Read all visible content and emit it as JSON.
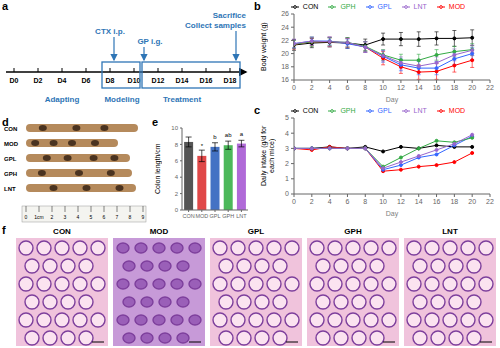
{
  "panel_labels": [
    "a",
    "b",
    "c",
    "d",
    "e",
    "f"
  ],
  "timeline": {
    "days": [
      "D0",
      "D2",
      "D4",
      "D6",
      "D8",
      "D10",
      "D12",
      "D14",
      "D16",
      "D18"
    ],
    "phases": [
      "Adapting",
      "Modeling",
      "Treatment"
    ],
    "events": [
      "CTX i.p.",
      "GP i.g.",
      "Sacrifice",
      "Collect samples"
    ]
  },
  "chart_data": [
    {
      "type": "line",
      "y_label": "Body weight (g)",
      "x_label": "Day",
      "x": [
        0,
        2,
        4,
        6,
        8,
        10,
        12,
        14,
        16,
        18,
        20
      ],
      "xlim": [
        0,
        22
      ],
      "xticks": [
        0,
        2,
        4,
        6,
        8,
        10,
        12,
        14,
        16,
        18,
        20,
        22
      ],
      "ylim": [
        16,
        26
      ],
      "yticks": [
        16,
        18,
        20,
        22,
        24,
        26
      ],
      "legend": "top",
      "marker": "circle",
      "series": [
        {
          "name": "CON",
          "color": "#000000",
          "values": [
            21.3,
            21.6,
            21.7,
            21.6,
            21.3,
            22.2,
            22.2,
            22.2,
            22.3,
            22.3,
            22.4
          ],
          "errors": [
            0.8,
            0.7,
            0.7,
            0.8,
            0.9,
            0.9,
            1.0,
            1.1,
            1.0,
            1.2,
            1.2
          ]
        },
        {
          "name": "MOD",
          "color": "#ff0000",
          "values": [
            21.4,
            21.8,
            21.8,
            21.6,
            21.0,
            19.3,
            18.0,
            17.2,
            17.3,
            18.2,
            19.0
          ],
          "errors": [
            0.7,
            0.6,
            0.7,
            0.7,
            0.8,
            1.0,
            1.0,
            1.1,
            1.2,
            1.0,
            1.1
          ]
        },
        {
          "name": "GPL",
          "color": "#3366ff",
          "values": [
            21.5,
            21.9,
            21.9,
            21.5,
            21.0,
            19.6,
            18.3,
            17.8,
            17.8,
            19.2,
            20.0
          ],
          "errors": [
            0.6,
            0.6,
            0.6,
            0.7,
            0.8,
            0.9,
            0.9,
            1.0,
            1.0,
            0.9,
            0.9
          ]
        },
        {
          "name": "GPH",
          "color": "#33aa44",
          "values": [
            21.4,
            21.8,
            21.8,
            21.7,
            21.1,
            19.8,
            19.0,
            19.0,
            19.8,
            20.3,
            20.6
          ],
          "errors": [
            0.6,
            0.7,
            0.6,
            0.7,
            0.7,
            0.8,
            0.9,
            0.9,
            0.8,
            0.8,
            0.9
          ]
        },
        {
          "name": "LNT",
          "color": "#9966cc",
          "values": [
            21.5,
            21.9,
            21.8,
            21.7,
            21.0,
            19.7,
            18.6,
            18.1,
            18.6,
            19.8,
            20.5
          ],
          "errors": [
            0.7,
            0.6,
            0.7,
            0.6,
            0.8,
            0.8,
            0.9,
            1.0,
            0.9,
            0.9,
            0.8
          ]
        }
      ]
    },
    {
      "type": "line",
      "y_label": "Daily intake (g/d for each mice)",
      "x_label": "Day",
      "x": [
        0,
        2,
        4,
        6,
        8,
        10,
        12,
        14,
        16,
        18,
        20
      ],
      "xlim": [
        0,
        22
      ],
      "xticks": [
        0,
        2,
        4,
        6,
        8,
        10,
        12,
        14,
        16,
        18,
        20,
        22
      ],
      "ylim": [
        0,
        5
      ],
      "yticks": [
        0,
        1,
        2,
        3,
        4,
        5
      ],
      "legend": "top",
      "marker": "circle",
      "series": [
        {
          "name": "CON",
          "color": "#000000",
          "values": [
            3.0,
            3.0,
            3.1,
            3.0,
            3.1,
            2.8,
            3.1,
            3.0,
            3.2,
            3.1,
            3.1
          ]
        },
        {
          "name": "MOD",
          "color": "#ff0000",
          "values": [
            3.0,
            2.9,
            3.1,
            3.0,
            3.0,
            1.5,
            1.6,
            1.8,
            1.9,
            2.1,
            2.7
          ]
        },
        {
          "name": "GPL",
          "color": "#3366ff",
          "values": [
            3.0,
            3.0,
            3.0,
            3.0,
            3.0,
            1.6,
            1.9,
            2.4,
            2.6,
            3.2,
            3.8
          ]
        },
        {
          "name": "GPH",
          "color": "#33aa44",
          "values": [
            3.0,
            3.0,
            3.0,
            3.0,
            3.0,
            1.8,
            2.4,
            3.0,
            3.5,
            3.4,
            3.7
          ]
        },
        {
          "name": "LNT",
          "color": "#9966cc",
          "values": [
            3.0,
            3.0,
            3.0,
            3.0,
            3.0,
            1.7,
            2.1,
            2.5,
            2.9,
            3.3,
            3.9
          ]
        }
      ]
    },
    {
      "type": "bar",
      "y_label": "Colon length/cm",
      "categories": [
        "CON",
        "MOD",
        "GPL",
        "GPH",
        "LNT"
      ],
      "values": [
        8.3,
        6.6,
        7.7,
        7.9,
        8.1
      ],
      "errors": [
        0.6,
        0.7,
        0.5,
        0.5,
        0.4
      ],
      "marks": [
        null,
        "*",
        "b",
        "ab",
        "a"
      ],
      "colors": [
        "#555555",
        "#e04848",
        "#4472c4",
        "#4cb85a",
        "#b06ad8"
      ],
      "ylim": [
        0,
        10
      ],
      "yticks": [
        0,
        2,
        4,
        6,
        8,
        10
      ]
    }
  ],
  "colon_photo": {
    "groups": [
      "CON",
      "MOD",
      "GPL",
      "GPH",
      "LNT"
    ],
    "ruler": [
      "0",
      "1cm",
      "2",
      "3",
      "4",
      "5",
      "6",
      "7",
      "8",
      "9"
    ]
  },
  "histology": {
    "groups": [
      "CON",
      "MOD",
      "GPL",
      "GPH",
      "LNT"
    ]
  }
}
